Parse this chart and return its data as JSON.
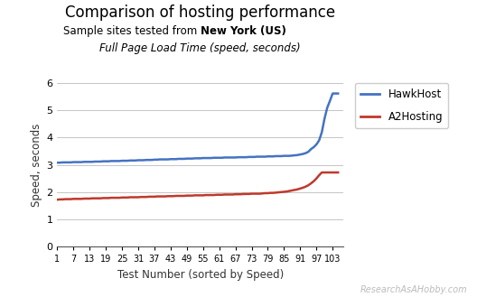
{
  "title": "Comparison of hosting performance",
  "subtitle1_normal": "Sample sites tested from ",
  "subtitle1_bold": "New York (US)",
  "subtitle2": "Full Page Load Time (speed, seconds)",
  "xlabel": "Test Number (sorted by Speed)",
  "ylabel": "Speed, seconds",
  "watermark": "ResearchAsAHobby.com",
  "x_ticks": [
    1,
    7,
    13,
    19,
    25,
    31,
    37,
    43,
    49,
    55,
    61,
    67,
    73,
    79,
    85,
    91,
    97,
    103
  ],
  "ylim": [
    0,
    6
  ],
  "yticks": [
    0,
    1,
    2,
    3,
    4,
    5,
    6
  ],
  "xlim": [
    1,
    107
  ],
  "hawkhost_color": "#4472C4",
  "a2hosting_color": "#C0392B",
  "legend_labels": [
    "HawkHost",
    "A2Hosting"
  ],
  "hawkhost_x": [
    1,
    2,
    3,
    4,
    5,
    6,
    7,
    8,
    9,
    10,
    11,
    12,
    13,
    14,
    15,
    16,
    17,
    18,
    19,
    20,
    21,
    22,
    23,
    24,
    25,
    26,
    27,
    28,
    29,
    30,
    31,
    32,
    33,
    34,
    35,
    36,
    37,
    38,
    39,
    40,
    41,
    42,
    43,
    44,
    45,
    46,
    47,
    48,
    49,
    50,
    51,
    52,
    53,
    54,
    55,
    56,
    57,
    58,
    59,
    60,
    61,
    62,
    63,
    64,
    65,
    66,
    67,
    68,
    69,
    70,
    71,
    72,
    73,
    74,
    75,
    76,
    77,
    78,
    79,
    80,
    81,
    82,
    83,
    84,
    85,
    86,
    87,
    88,
    89,
    90,
    91,
    92,
    93,
    94,
    95,
    96,
    97,
    98,
    99,
    100,
    101,
    102,
    103,
    104,
    105
  ],
  "hawkhost_y": [
    3.08,
    3.08,
    3.09,
    3.09,
    3.09,
    3.09,
    3.1,
    3.1,
    3.1,
    3.1,
    3.11,
    3.11,
    3.11,
    3.11,
    3.12,
    3.12,
    3.12,
    3.13,
    3.13,
    3.13,
    3.14,
    3.14,
    3.14,
    3.14,
    3.15,
    3.15,
    3.15,
    3.16,
    3.16,
    3.16,
    3.17,
    3.17,
    3.17,
    3.18,
    3.18,
    3.18,
    3.19,
    3.19,
    3.2,
    3.2,
    3.2,
    3.2,
    3.21,
    3.21,
    3.21,
    3.22,
    3.22,
    3.22,
    3.23,
    3.23,
    3.23,
    3.24,
    3.24,
    3.24,
    3.25,
    3.25,
    3.25,
    3.25,
    3.26,
    3.26,
    3.26,
    3.26,
    3.27,
    3.27,
    3.27,
    3.27,
    3.27,
    3.28,
    3.28,
    3.28,
    3.28,
    3.29,
    3.29,
    3.29,
    3.3,
    3.3,
    3.3,
    3.3,
    3.31,
    3.31,
    3.31,
    3.32,
    3.32,
    3.32,
    3.33,
    3.33,
    3.33,
    3.34,
    3.35,
    3.36,
    3.38,
    3.4,
    3.43,
    3.48,
    3.58,
    3.65,
    3.75,
    3.9,
    4.2,
    4.7,
    5.1,
    5.35,
    5.62,
    5.62,
    5.62
  ],
  "a2hosting_x": [
    1,
    2,
    3,
    4,
    5,
    6,
    7,
    8,
    9,
    10,
    11,
    12,
    13,
    14,
    15,
    16,
    17,
    18,
    19,
    20,
    21,
    22,
    23,
    24,
    25,
    26,
    27,
    28,
    29,
    30,
    31,
    32,
    33,
    34,
    35,
    36,
    37,
    38,
    39,
    40,
    41,
    42,
    43,
    44,
    45,
    46,
    47,
    48,
    49,
    50,
    51,
    52,
    53,
    54,
    55,
    56,
    57,
    58,
    59,
    60,
    61,
    62,
    63,
    64,
    65,
    66,
    67,
    68,
    69,
    70,
    71,
    72,
    73,
    74,
    75,
    76,
    77,
    78,
    79,
    80,
    81,
    82,
    83,
    84,
    85,
    86,
    87,
    88,
    89,
    90,
    91,
    92,
    93,
    94,
    95,
    96,
    97,
    98,
    99,
    100,
    101,
    102,
    103,
    104,
    105
  ],
  "a2hosting_y": [
    1.72,
    1.73,
    1.73,
    1.74,
    1.74,
    1.74,
    1.75,
    1.75,
    1.75,
    1.75,
    1.76,
    1.76,
    1.76,
    1.77,
    1.77,
    1.77,
    1.77,
    1.78,
    1.78,
    1.78,
    1.79,
    1.79,
    1.79,
    1.79,
    1.8,
    1.8,
    1.8,
    1.81,
    1.81,
    1.81,
    1.81,
    1.82,
    1.82,
    1.82,
    1.83,
    1.83,
    1.83,
    1.84,
    1.84,
    1.84,
    1.84,
    1.85,
    1.85,
    1.85,
    1.86,
    1.86,
    1.86,
    1.86,
    1.87,
    1.87,
    1.87,
    1.88,
    1.88,
    1.88,
    1.88,
    1.89,
    1.89,
    1.89,
    1.89,
    1.9,
    1.9,
    1.9,
    1.91,
    1.91,
    1.91,
    1.91,
    1.92,
    1.92,
    1.92,
    1.93,
    1.93,
    1.93,
    1.94,
    1.94,
    1.94,
    1.94,
    1.95,
    1.96,
    1.96,
    1.97,
    1.97,
    1.98,
    1.99,
    2.0,
    2.01,
    2.02,
    2.04,
    2.06,
    2.08,
    2.1,
    2.13,
    2.16,
    2.2,
    2.25,
    2.32,
    2.4,
    2.5,
    2.62,
    2.72,
    2.72,
    2.72,
    2.72,
    2.72,
    2.72,
    2.72
  ]
}
